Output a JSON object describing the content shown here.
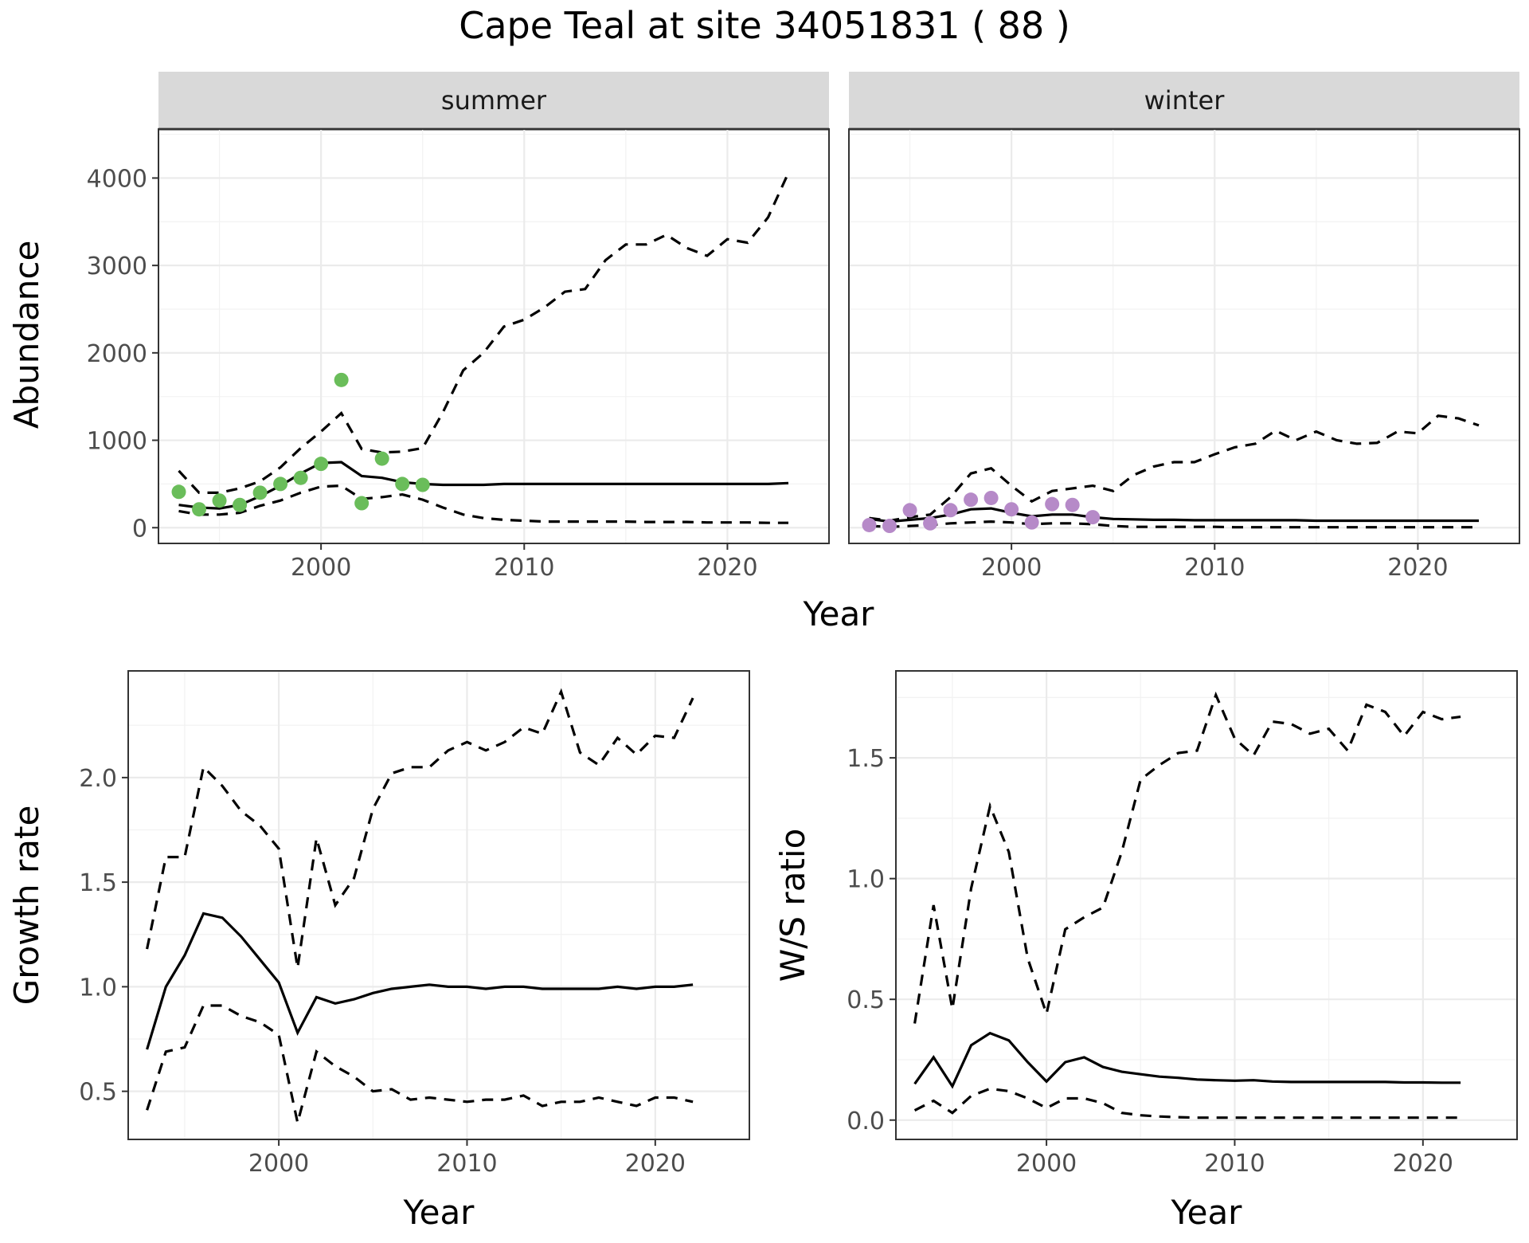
{
  "figure": {
    "title": "Cape Teal at site 34051831 ( 88 )"
  },
  "colors": {
    "summer_points": "#6abd5a",
    "winter_points": "#b68ac8"
  },
  "chart_data": [
    {
      "id": "summer",
      "type": "line",
      "strip": "summer",
      "xlabel": "",
      "ylabel": "Abundance",
      "xlim": [
        1992,
        2025
      ],
      "ylim": [
        -180,
        4560
      ],
      "x_ticks": [
        2000,
        2010,
        2020
      ],
      "y_ticks": [
        0,
        1000,
        2000,
        3000,
        4000
      ],
      "point_color": "#6abd5a",
      "years": [
        1993,
        1994,
        1995,
        1996,
        1997,
        1998,
        1999,
        2000,
        2001,
        2002,
        2003,
        2004,
        2005,
        2006,
        2007,
        2008,
        2009,
        2010,
        2011,
        2012,
        2013,
        2014,
        2015,
        2016,
        2017,
        2018,
        2019,
        2020,
        2021,
        2022,
        2023
      ],
      "mean": [
        260,
        230,
        220,
        260,
        360,
        480,
        620,
        740,
        750,
        590,
        570,
        520,
        500,
        490,
        490,
        490,
        500,
        500,
        500,
        500,
        500,
        500,
        500,
        500,
        500,
        500,
        500,
        500,
        500,
        500,
        510
      ],
      "upper": [
        650,
        400,
        400,
        450,
        530,
        690,
        910,
        1100,
        1310,
        900,
        860,
        870,
        910,
        1320,
        1800,
        2000,
        2300,
        2380,
        2520,
        2700,
        2730,
        3060,
        3240,
        3240,
        3350,
        3200,
        3110,
        3300,
        3260,
        3550,
        4060
      ],
      "lower": [
        190,
        150,
        150,
        170,
        250,
        310,
        400,
        470,
        480,
        330,
        350,
        380,
        320,
        230,
        150,
        110,
        90,
        80,
        70,
        70,
        70,
        70,
        70,
        65,
        65,
        65,
        60,
        60,
        60,
        55,
        55
      ],
      "observed_years": [
        1993,
        1994,
        1995,
        1996,
        1997,
        1998,
        1999,
        2000,
        2001,
        2002,
        2003,
        2004,
        2005
      ],
      "observed": [
        410,
        210,
        310,
        260,
        400,
        500,
        570,
        730,
        1690,
        280,
        790,
        500,
        490
      ]
    },
    {
      "id": "winter",
      "type": "line",
      "strip": "winter",
      "xlabel": "",
      "ylabel": "",
      "xlim": [
        1992,
        2025
      ],
      "ylim": [
        -180,
        4560
      ],
      "x_ticks": [
        2000,
        2010,
        2020
      ],
      "y_ticks": [],
      "point_color": "#b68ac8",
      "years": [
        1993,
        1994,
        1995,
        1996,
        1997,
        1998,
        1999,
        2000,
        2001,
        2002,
        2003,
        2004,
        2005,
        2006,
        2007,
        2008,
        2009,
        2010,
        2011,
        2012,
        2013,
        2014,
        2015,
        2016,
        2017,
        2018,
        2019,
        2020,
        2021,
        2022,
        2023
      ],
      "mean": [
        100,
        70,
        90,
        110,
        150,
        210,
        220,
        170,
        130,
        150,
        150,
        120,
        100,
        95,
        90,
        90,
        85,
        85,
        85,
        85,
        85,
        85,
        80,
        80,
        80,
        80,
        80,
        80,
        80,
        80,
        80
      ],
      "upper": [
        110,
        80,
        120,
        150,
        350,
        620,
        680,
        480,
        300,
        420,
        450,
        480,
        420,
        600,
        700,
        750,
        750,
        840,
        920,
        960,
        1110,
        1000,
        1100,
        1000,
        960,
        970,
        1100,
        1080,
        1280,
        1250,
        1170
      ],
      "lower": [
        20,
        10,
        20,
        30,
        50,
        60,
        70,
        60,
        40,
        50,
        50,
        40,
        20,
        10,
        10,
        10,
        10,
        10,
        5,
        5,
        5,
        5,
        5,
        5,
        5,
        5,
        5,
        5,
        5,
        5,
        5
      ],
      "observed_years": [
        1993,
        1994,
        1995,
        1996,
        1997,
        1998,
        1999,
        2000,
        2001,
        2002,
        2003,
        2004
      ],
      "observed": [
        30,
        20,
        200,
        50,
        200,
        320,
        340,
        210,
        60,
        270,
        260,
        120
      ]
    },
    {
      "id": "growth",
      "type": "line",
      "xlabel": "Year",
      "ylabel": "Growth rate",
      "xlim": [
        1992,
        2025
      ],
      "ylim": [
        0.27,
        2.51
      ],
      "x_ticks": [
        2000,
        2010,
        2020
      ],
      "y_ticks": [
        0.5,
        1.0,
        1.5,
        2.0
      ],
      "y_tick_labels": [
        "0.5",
        "1.0",
        "1.5",
        "2.0"
      ],
      "years": [
        1993,
        1994,
        1995,
        1996,
        1997,
        1998,
        1999,
        2000,
        2001,
        2002,
        2003,
        2004,
        2005,
        2006,
        2007,
        2008,
        2009,
        2010,
        2011,
        2012,
        2013,
        2014,
        2015,
        2016,
        2017,
        2018,
        2019,
        2020,
        2021,
        2022
      ],
      "mean": [
        0.7,
        1.0,
        1.15,
        1.35,
        1.33,
        1.24,
        1.13,
        1.02,
        0.78,
        0.95,
        0.92,
        0.94,
        0.97,
        0.99,
        1.0,
        1.01,
        1.0,
        1.0,
        0.99,
        1.0,
        1.0,
        0.99,
        0.99,
        0.99,
        0.99,
        1.0,
        0.99,
        1.0,
        1.0,
        1.01
      ],
      "upper": [
        1.18,
        1.62,
        1.62,
        2.05,
        1.96,
        1.84,
        1.77,
        1.66,
        1.09,
        1.71,
        1.39,
        1.52,
        1.85,
        2.02,
        2.05,
        2.05,
        2.13,
        2.17,
        2.13,
        2.17,
        2.24,
        2.21,
        2.41,
        2.12,
        2.06,
        2.19,
        2.11,
        2.2,
        2.19,
        2.38
      ],
      "lower": [
        0.41,
        0.69,
        0.71,
        0.91,
        0.91,
        0.86,
        0.83,
        0.77,
        0.35,
        0.69,
        0.62,
        0.57,
        0.5,
        0.51,
        0.46,
        0.47,
        0.46,
        0.45,
        0.46,
        0.46,
        0.48,
        0.43,
        0.45,
        0.45,
        0.47,
        0.45,
        0.43,
        0.47,
        0.47,
        0.45
      ]
    },
    {
      "id": "ratio",
      "type": "line",
      "xlabel": "Year",
      "ylabel": "W/S ratio",
      "xlim": [
        1992,
        2025
      ],
      "ylim": [
        -0.08,
        1.86
      ],
      "x_ticks": [
        2000,
        2010,
        2020
      ],
      "y_ticks": [
        0.0,
        0.5,
        1.0,
        1.5
      ],
      "y_tick_labels": [
        "0.0",
        "0.5",
        "1.0",
        "1.5"
      ],
      "years": [
        1993,
        1994,
        1995,
        1996,
        1997,
        1998,
        1999,
        2000,
        2001,
        2002,
        2003,
        2004,
        2005,
        2006,
        2007,
        2008,
        2009,
        2010,
        2011,
        2012,
        2013,
        2014,
        2015,
        2016,
        2017,
        2018,
        2019,
        2020,
        2021,
        2022
      ],
      "mean": [
        0.15,
        0.26,
        0.14,
        0.31,
        0.36,
        0.33,
        0.24,
        0.16,
        0.24,
        0.26,
        0.22,
        0.2,
        0.19,
        0.18,
        0.175,
        0.168,
        0.165,
        0.163,
        0.165,
        0.16,
        0.158,
        0.158,
        0.158,
        0.158,
        0.158,
        0.158,
        0.156,
        0.156,
        0.155,
        0.155
      ],
      "upper": [
        0.4,
        0.89,
        0.46,
        0.96,
        1.3,
        1.11,
        0.67,
        0.44,
        0.79,
        0.84,
        0.88,
        1.11,
        1.41,
        1.47,
        1.52,
        1.53,
        1.76,
        1.58,
        1.51,
        1.65,
        1.64,
        1.6,
        1.62,
        1.53,
        1.72,
        1.69,
        1.59,
        1.69,
        1.66,
        1.67
      ],
      "lower": [
        0.04,
        0.08,
        0.03,
        0.1,
        0.13,
        0.12,
        0.09,
        0.05,
        0.09,
        0.09,
        0.07,
        0.03,
        0.02,
        0.015,
        0.012,
        0.01,
        0.01,
        0.01,
        0.01,
        0.01,
        0.01,
        0.01,
        0.01,
        0.01,
        0.01,
        0.01,
        0.01,
        0.01,
        0.01,
        0.01
      ]
    }
  ]
}
